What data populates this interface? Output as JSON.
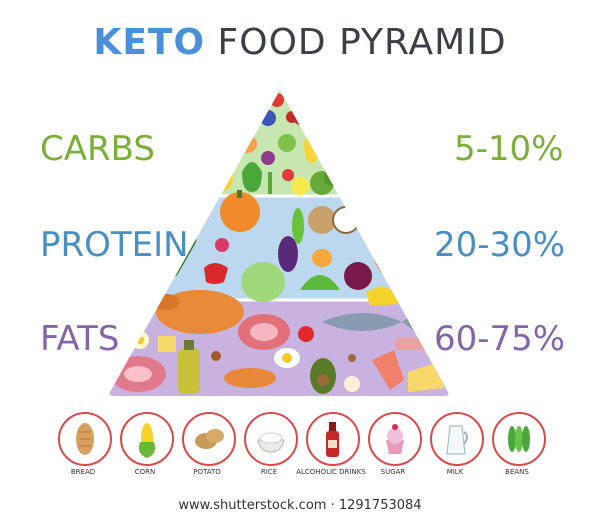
{
  "title": {
    "keto": "KETO",
    "rest": "FOOD PYRAMID"
  },
  "levels": [
    {
      "name": "CARBS",
      "percent": "5-10%",
      "color": "#7cae3a"
    },
    {
      "name": "PROTEIN",
      "percent": "20-30%",
      "color": "#4b8ec2"
    },
    {
      "name": "FATS",
      "percent": "60-75%",
      "color": "#8466a8"
    }
  ],
  "tiers_colors": {
    "carbs": "#c8e6b0",
    "protein": "#bcd8ef",
    "fats": "#c8b3e0"
  },
  "avoid_foods": [
    {
      "label": "BREAD",
      "icon": "bread-icon"
    },
    {
      "label": "CORN",
      "icon": "corn-icon"
    },
    {
      "label": "POTATO",
      "icon": "potato-icon"
    },
    {
      "label": "RICE",
      "icon": "rice-icon"
    },
    {
      "label": "ALCOHOLIC DRINKS",
      "icon": "bottle-icon"
    },
    {
      "label": "SUGAR",
      "icon": "cupcake-icon"
    },
    {
      "label": "MILK",
      "icon": "milk-icon"
    },
    {
      "label": "BEANS",
      "icon": "beans-icon"
    }
  ],
  "footer": "www.shutterstock.com · 1291753084"
}
